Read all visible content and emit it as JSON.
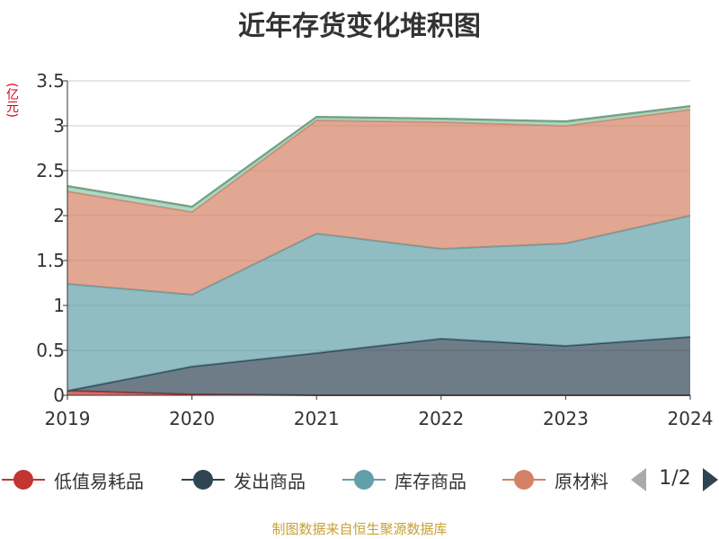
{
  "chart_data": {
    "type": "area",
    "stacked": true,
    "title": "近年存货变化堆积图",
    "unit": "(亿元)",
    "categories": [
      "2019",
      "2020",
      "2021",
      "2022",
      "2023",
      "2024"
    ],
    "ylim": [
      0,
      3.5
    ],
    "yticks": [
      "0",
      "0.5",
      "1",
      "1.5",
      "2",
      "2.5",
      "3",
      "3.5"
    ],
    "grid": true,
    "series": [
      {
        "name": "低值易耗品",
        "color": "#c23531",
        "values": [
          0.05,
          0.01,
          0.0,
          0.0,
          0.0,
          0.0
        ]
      },
      {
        "name": "发出商品",
        "color": "#2f4554",
        "values": [
          0.0,
          0.31,
          0.47,
          0.63,
          0.55,
          0.65
        ]
      },
      {
        "name": "库存商品",
        "color": "#61a0a8",
        "values": [
          1.19,
          0.8,
          1.33,
          1.0,
          1.14,
          1.35
        ]
      },
      {
        "name": "原材料",
        "color": "#d48265",
        "values": [
          1.03,
          0.92,
          1.26,
          1.41,
          1.31,
          1.18
        ]
      },
      {
        "color": "#91c7ae",
        "values": [
          0.05,
          0.05,
          0.03,
          0.03,
          0.04,
          0.03
        ]
      },
      {
        "color": "#749f83",
        "values": [
          0.01,
          0.01,
          0.01,
          0.01,
          0.01,
          0.01
        ]
      }
    ]
  },
  "legend": {
    "items": [
      {
        "label": "低值易耗品",
        "color": "#c23531"
      },
      {
        "label": "发出商品",
        "color": "#2f4554"
      },
      {
        "label": "库存商品",
        "color": "#61a0a8"
      },
      {
        "label": "原材料",
        "color": "#d48265"
      }
    ],
    "pager": "1/2"
  },
  "source_note": "制图数据来自恒生聚源数据库"
}
